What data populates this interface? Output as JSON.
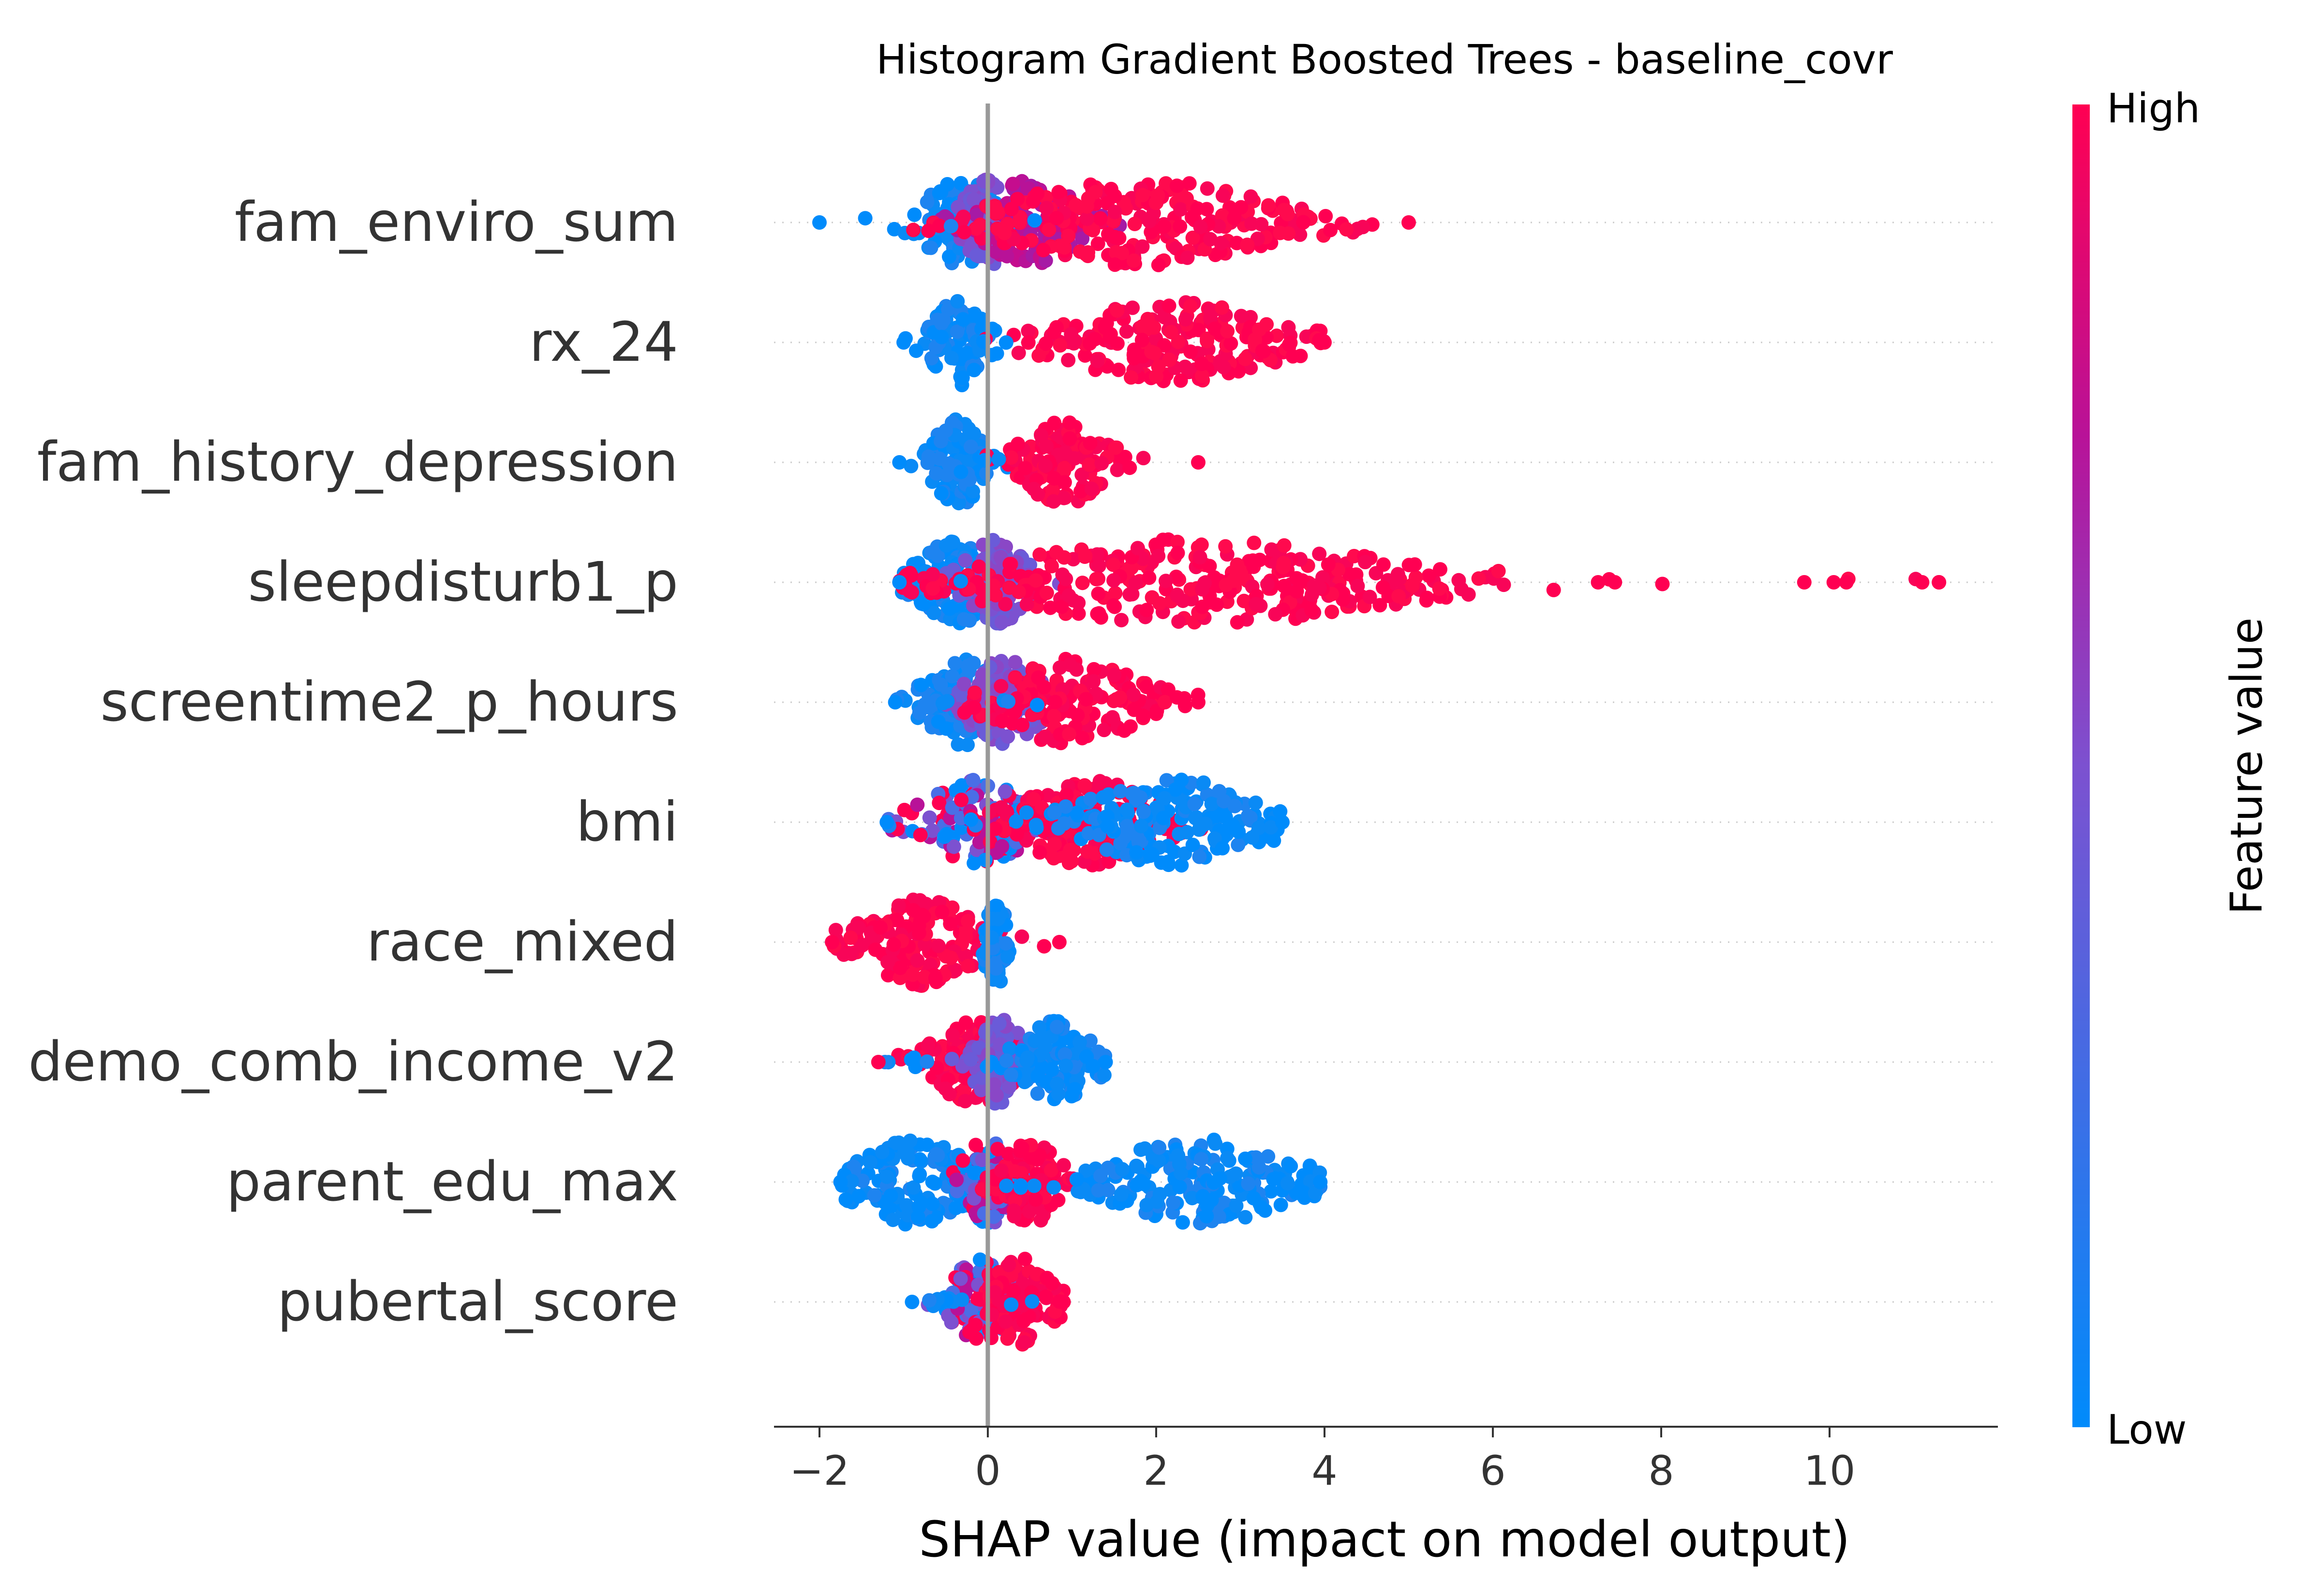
{
  "chart_data": {
    "type": "scatter",
    "subtype": "shap-beeswarm",
    "title": "Histogram Gradient Boosted Trees - baseline_covr",
    "xlabel": "SHAP value (impact on model output)",
    "xlim": [
      -2.55,
      12.0
    ],
    "xticks": [
      -2,
      0,
      2,
      4,
      6,
      8,
      10
    ],
    "xtick_labels": [
      "−2",
      "0",
      "2",
      "4",
      "6",
      "8",
      "10"
    ],
    "colorbar": {
      "title": "Feature value",
      "high_label": "High",
      "low_label": "Low",
      "high_color": "#ff0052",
      "low_color": "#008bfb"
    },
    "features": [
      {
        "name": "fam_enviro_sum",
        "shap_min": -2.0,
        "shap_max": 5.0,
        "clusters": [
          {
            "center": -0.3,
            "spread": 0.35,
            "color": "low"
          },
          {
            "center": 0.0,
            "spread": 0.2,
            "color": "mid"
          },
          {
            "center": 0.5,
            "spread": 0.4,
            "color": "midhigh"
          },
          {
            "center": 1.8,
            "spread": 1.2,
            "color": "high"
          }
        ]
      },
      {
        "name": "rx_24",
        "shap_min": -1.0,
        "shap_max": 4.0,
        "clusters": [
          {
            "center": -0.35,
            "spread": 0.2,
            "color": "low"
          },
          {
            "center": 2.2,
            "spread": 0.9,
            "color": "high"
          }
        ]
      },
      {
        "name": "fam_history_depression",
        "shap_min": -1.05,
        "shap_max": 2.5,
        "clusters": [
          {
            "center": -0.35,
            "spread": 0.2,
            "color": "low"
          },
          {
            "center": 0.9,
            "spread": 0.35,
            "color": "high"
          }
        ]
      },
      {
        "name": "sleepdisturb1_p",
        "shap_min": -1.05,
        "shap_max": 11.3,
        "clusters": [
          {
            "center": -0.4,
            "spread": 0.3,
            "color": "low"
          },
          {
            "center": 0.1,
            "spread": 0.25,
            "color": "mid"
          },
          {
            "center": 2.5,
            "spread": 1.8,
            "color": "high"
          }
        ],
        "outliers": [
          7.25,
          7.45,
          9.7,
          10.05,
          10.2,
          11.1,
          11.3
        ]
      },
      {
        "name": "screentime2_p_hours",
        "shap_min": -1.1,
        "shap_max": 2.5,
        "clusters": [
          {
            "center": -0.3,
            "spread": 0.3,
            "color": "low"
          },
          {
            "center": 0.2,
            "spread": 0.3,
            "color": "mid"
          },
          {
            "center": 1.0,
            "spread": 0.6,
            "color": "high"
          }
        ]
      },
      {
        "name": "bmi",
        "shap_min": -1.2,
        "shap_max": 3.5,
        "clusters": [
          {
            "center": -0.1,
            "spread": 0.45,
            "color": "mixed"
          },
          {
            "center": 1.2,
            "spread": 0.6,
            "color": "high"
          },
          {
            "center": 2.2,
            "spread": 0.8,
            "color": "low"
          }
        ]
      },
      {
        "name": "race_mixed",
        "shap_min": -1.85,
        "shap_max": 0.85,
        "clusters": [
          {
            "center": -0.8,
            "spread": 0.5,
            "color": "high"
          },
          {
            "center": 0.1,
            "spread": 0.08,
            "color": "low"
          }
        ]
      },
      {
        "name": "demo_comb_income_v2",
        "shap_min": -1.3,
        "shap_max": 1.4,
        "clusters": [
          {
            "center": -0.15,
            "spread": 0.35,
            "color": "high"
          },
          {
            "center": 0.15,
            "spread": 0.2,
            "color": "mid"
          },
          {
            "center": 0.8,
            "spread": 0.3,
            "color": "low"
          }
        ]
      },
      {
        "name": "parent_edu_max",
        "shap_min": -1.75,
        "shap_max": 3.95,
        "clusters": [
          {
            "center": -0.9,
            "spread": 0.5,
            "color": "low"
          },
          {
            "center": 0.0,
            "spread": 0.2,
            "color": "mixed"
          },
          {
            "center": 0.5,
            "spread": 0.25,
            "color": "high"
          },
          {
            "center": 2.5,
            "spread": 0.8,
            "color": "low"
          }
        ]
      },
      {
        "name": "pubertal_score",
        "shap_min": -0.9,
        "shap_max": 0.9,
        "clusters": [
          {
            "center": -0.1,
            "spread": 0.25,
            "color": "mixed"
          },
          {
            "center": 0.4,
            "spread": 0.25,
            "color": "high"
          }
        ]
      }
    ]
  }
}
